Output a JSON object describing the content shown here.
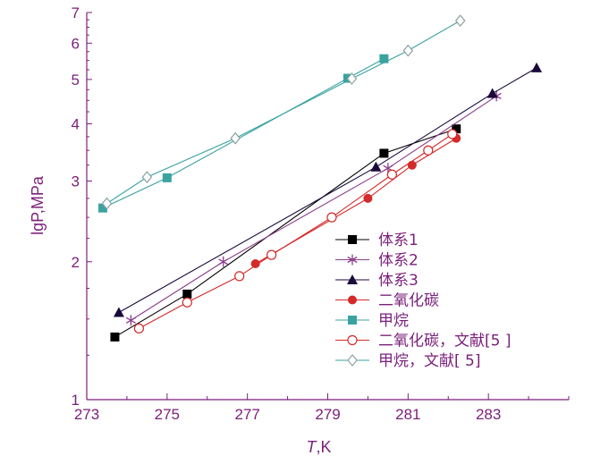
{
  "chart_data": {
    "type": "line",
    "xlabel_italic": "T",
    "xlabel_unit": ",K",
    "ylabel": "lgP,MPa",
    "xlim": [
      273,
      285
    ],
    "ylim": [
      1,
      7
    ],
    "ylog": true,
    "xticks": [
      273,
      275,
      277,
      279,
      281,
      283
    ],
    "yticks": [
      1,
      2,
      3,
      4,
      5,
      6,
      7
    ],
    "legend_position": "lower-right",
    "series": [
      {
        "name": "体系1",
        "color": "#000000",
        "marker": "square-filled",
        "x": [
          273.7,
          275.5,
          280.4,
          282.2
        ],
        "y": [
          1.37,
          1.7,
          3.45,
          3.9
        ]
      },
      {
        "name": "体系2",
        "color": "#8a3d8a",
        "marker": "asterisk",
        "x": [
          274.1,
          276.4,
          280.5,
          283.2
        ],
        "y": [
          1.49,
          2.0,
          3.2,
          4.6
        ]
      },
      {
        "name": "体系3",
        "color": "#1a0a3a",
        "marker": "triangle-filled",
        "x": [
          273.8,
          280.2,
          283.1,
          284.2
        ],
        "y": [
          1.55,
          3.22,
          4.66,
          5.3
        ]
      },
      {
        "name": "二氧化碳",
        "color": "#d42a2a",
        "marker": "circle-filled",
        "x": [
          277.2,
          280.0,
          281.1,
          282.2
        ],
        "y": [
          1.98,
          2.75,
          3.25,
          3.72
        ]
      },
      {
        "name": "甲烷",
        "color": "#3aa3a0",
        "marker": "square-filled",
        "x": [
          273.4,
          275.0,
          279.5,
          280.4
        ],
        "y": [
          2.62,
          3.05,
          5.03,
          5.55
        ]
      },
      {
        "name": "二氧化碳，文献[5 ]",
        "color": "#d42a2a",
        "marker": "circle-open",
        "x": [
          274.3,
          275.5,
          276.8,
          277.6,
          279.1,
          280.6,
          281.5,
          282.1
        ],
        "y": [
          1.43,
          1.63,
          1.86,
          2.07,
          2.5,
          3.1,
          3.5,
          3.8
        ]
      },
      {
        "name": "甲烷，文献[ 5]",
        "color": "#3aa3a0",
        "marker": "diamond-open",
        "x": [
          273.5,
          274.5,
          276.7,
          279.6,
          281.0,
          282.3
        ],
        "y": [
          2.68,
          3.06,
          3.72,
          5.02,
          5.78,
          6.72
        ]
      }
    ]
  }
}
